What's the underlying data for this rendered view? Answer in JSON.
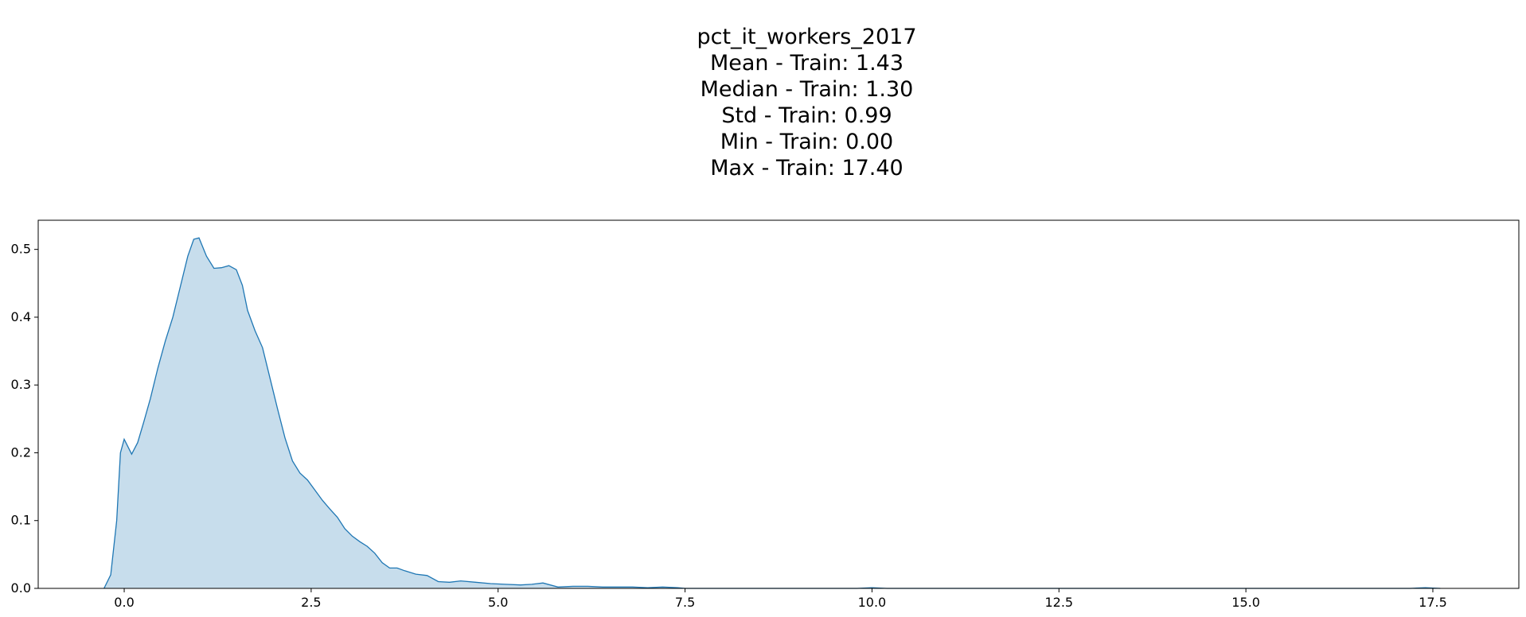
{
  "chart_data": {
    "type": "area",
    "title_lines": [
      "pct_it_workers_2017",
      "Mean - Train: 1.43",
      "Median - Train: 1.30",
      "Std - Train: 0.99",
      "Min - Train: 0.00",
      "Max - Train: 17.40"
    ],
    "xlabel": "",
    "ylabel": "",
    "xlim": [
      -1.15,
      18.65
    ],
    "ylim": [
      0,
      0.543
    ],
    "x_ticks": [
      0.0,
      2.5,
      5.0,
      7.5,
      10.0,
      12.5,
      15.0,
      17.5
    ],
    "x_tick_labels": [
      "0.0",
      "2.5",
      "5.0",
      "7.5",
      "10.0",
      "12.5",
      "15.0",
      "17.5"
    ],
    "y_ticks": [
      0.0,
      0.1,
      0.2,
      0.3,
      0.4,
      0.5
    ],
    "y_tick_labels": [
      "0.0",
      "0.1",
      "0.2",
      "0.3",
      "0.4",
      "0.5"
    ],
    "grid": false,
    "line_color": "#1f77b4",
    "fill_color": "#1f77b4",
    "fill_alpha": 0.25,
    "series": [
      {
        "x": [
          -0.27,
          -0.18,
          -0.1,
          -0.05,
          0.0,
          0.1,
          0.18,
          0.26,
          0.35,
          0.45,
          0.55,
          0.65,
          0.75,
          0.85,
          0.93,
          1.0,
          1.1,
          1.2,
          1.3,
          1.4,
          1.5,
          1.58,
          1.65,
          1.75,
          1.85,
          1.95,
          2.05,
          2.15,
          2.25,
          2.35,
          2.45,
          2.55,
          2.65,
          2.75,
          2.85,
          2.95,
          3.05,
          3.15,
          3.25,
          3.35,
          3.45,
          3.55,
          3.65,
          3.75,
          3.9,
          4.05,
          4.2,
          4.35,
          4.5,
          4.7,
          4.9,
          5.1,
          5.3,
          5.45,
          5.6,
          5.8,
          6.0,
          6.2,
          6.4,
          6.6,
          6.8,
          7.0,
          7.2,
          7.4,
          7.5,
          8.0,
          9.0,
          9.8,
          10.0,
          10.2,
          11.0,
          13.0,
          15.0,
          17.2,
          17.4,
          17.6
        ],
        "y": [
          0.0,
          0.02,
          0.1,
          0.2,
          0.22,
          0.198,
          0.215,
          0.245,
          0.28,
          0.325,
          0.365,
          0.4,
          0.445,
          0.49,
          0.515,
          0.517,
          0.49,
          0.472,
          0.473,
          0.476,
          0.47,
          0.447,
          0.41,
          0.38,
          0.355,
          0.31,
          0.265,
          0.222,
          0.188,
          0.17,
          0.16,
          0.145,
          0.13,
          0.117,
          0.105,
          0.088,
          0.077,
          0.069,
          0.062,
          0.052,
          0.038,
          0.03,
          0.03,
          0.026,
          0.021,
          0.019,
          0.01,
          0.009,
          0.011,
          0.009,
          0.007,
          0.006,
          0.005,
          0.006,
          0.008,
          0.002,
          0.003,
          0.003,
          0.002,
          0.002,
          0.002,
          0.001,
          0.002,
          0.001,
          0.0,
          0.0,
          0.0,
          0.0,
          0.001,
          0.0,
          0.0,
          0.0,
          0.0,
          0.0,
          0.001,
          0.0
        ]
      }
    ]
  }
}
